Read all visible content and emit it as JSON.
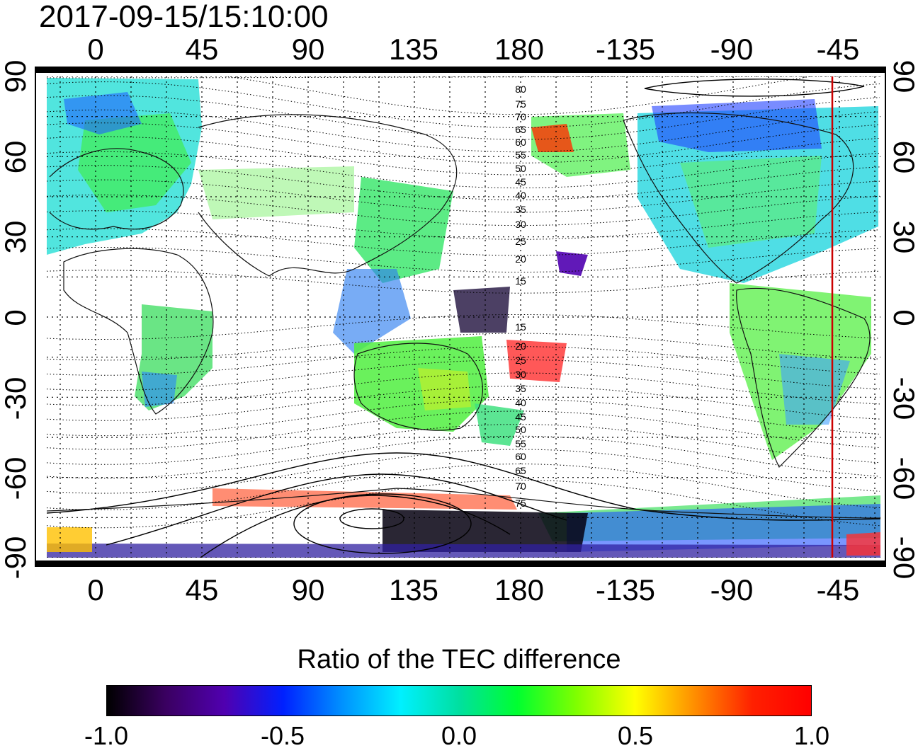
{
  "timestamp": "2017-09-15/15:10:00",
  "map": {
    "top_lon_labels": [
      "0",
      "45",
      "90",
      "135",
      "180",
      "-135",
      "-90",
      "-45"
    ],
    "bottom_lon_labels": [
      "0",
      "45",
      "90",
      "135",
      "180",
      "-135",
      "-90",
      "-45"
    ],
    "left_lat_labels": [
      "90",
      "60",
      "30",
      "0",
      "-30",
      "-60",
      "-90"
    ],
    "right_lat_labels": [
      "90",
      "60",
      "30",
      "0",
      "-30",
      "-60",
      "-90"
    ],
    "magnetic_lat_labels": [
      "80",
      "75",
      "70",
      "65",
      "60",
      "55",
      "50",
      "45",
      "40",
      "35",
      "30",
      "25",
      "20",
      "15",
      "15",
      "20",
      "25",
      "30",
      "35",
      "40",
      "45",
      "50",
      "55",
      "60",
      "65",
      "70",
      "75"
    ],
    "marker_line_longitude": -48,
    "line_color": "#cc0000"
  },
  "colorbar": {
    "title": "Ratio of the TEC difference",
    "tick_labels": [
      "-1.0",
      "-0.5",
      "0.0",
      "0.5",
      "1.0"
    ],
    "range": [
      -1.0,
      1.0
    ],
    "colors": [
      "#000000",
      "#3a0060",
      "#5000b0",
      "#0020ff",
      "#0090ff",
      "#00f0ff",
      "#00e0a0",
      "#00ff30",
      "#80ff00",
      "#ffff00",
      "#ff9000",
      "#ff2000",
      "#ff0000"
    ]
  }
}
